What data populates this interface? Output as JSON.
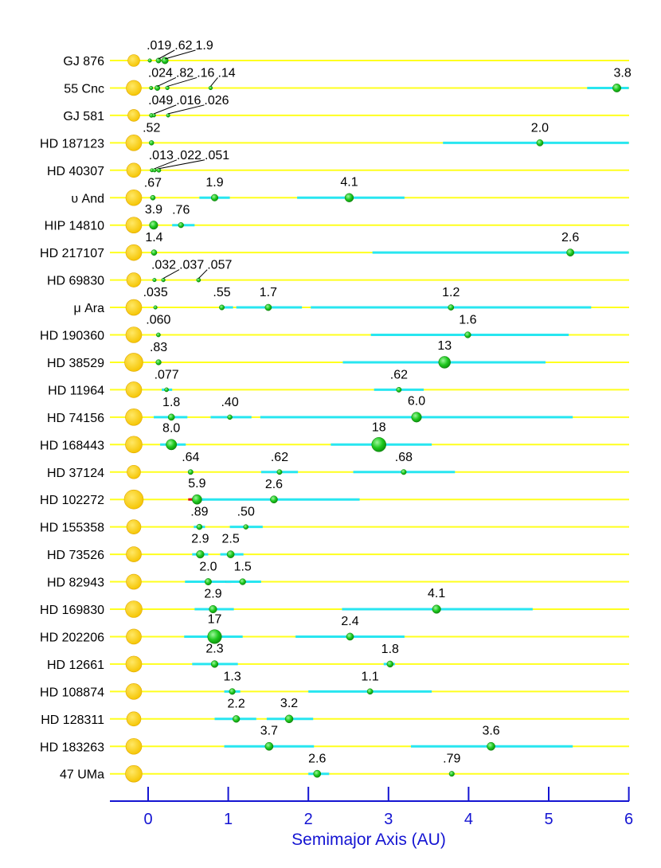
{
  "chart_data": {
    "type": "scatter",
    "xlabel": "Semimajor Axis (AU)",
    "xlim": [
      -0.45,
      6.05
    ],
    "xticks": [
      0,
      1,
      2,
      3,
      4,
      5,
      6
    ],
    "colors": {
      "baseline": "#ffff1e",
      "range": "#28e6f0",
      "periastron_overlap": "#e01010",
      "planet": "#1ec81e",
      "star": "#ffcc00",
      "axis": "#1414d2"
    },
    "systems": [
      {
        "name": "GJ 876",
        "star_size": 0.75,
        "planets": [
          {
            "a": 0.021,
            "mass": ".019",
            "r": 2.3
          },
          {
            "a": 0.13,
            "mass": ".62",
            "r": 3.2
          },
          {
            "a": 0.21,
            "mass": "1.9",
            "r": 4.2
          }
        ]
      },
      {
        "name": "55 Cnc",
        "star_size": 0.95,
        "planets": [
          {
            "a": 0.038,
            "mass": ".024",
            "r": 2.3
          },
          {
            "a": 0.115,
            "mass": ".82",
            "r": 3.3
          },
          {
            "a": 0.24,
            "mass": ".16",
            "r": 2.4
          },
          {
            "a": 0.78,
            "mass": ".14",
            "r": 2.4
          },
          {
            "a": 5.85,
            "mass": "3.8",
            "r": 5.2,
            "range": [
              5.48,
              6.0
            ]
          }
        ]
      },
      {
        "name": "GJ 581",
        "star_size": 0.75,
        "planets": [
          {
            "a": 0.041,
            "mass": ".049",
            "r": 2.6
          },
          {
            "a": 0.073,
            "mass": ".016",
            "r": 2.2
          },
          {
            "a": 0.25,
            "mass": ".026",
            "r": 2.3
          }
        ]
      },
      {
        "name": "HD 187123",
        "star_size": 1.0,
        "planets": [
          {
            "a": 0.042,
            "mass": ".52",
            "r": 3.0
          },
          {
            "a": 4.89,
            "mass": "2.0",
            "r": 4.1,
            "range": [
              3.68,
              6.0
            ]
          }
        ]
      },
      {
        "name": "HD 40307",
        "star_size": 0.9,
        "planets": [
          {
            "a": 0.047,
            "mass": ".013",
            "r": 2.2
          },
          {
            "a": 0.081,
            "mass": ".022",
            "r": 2.3
          },
          {
            "a": 0.134,
            "mass": ".051",
            "r": 2.6
          }
        ]
      },
      {
        "name": "υ And",
        "star_size": 1.0,
        "planets": [
          {
            "a": 0.059,
            "mass": ".67",
            "r": 3.1
          },
          {
            "a": 0.83,
            "mass": "1.9",
            "r": 4.3,
            "range": [
              0.64,
              1.02
            ]
          },
          {
            "a": 2.51,
            "mass": "4.1",
            "r": 5.4,
            "range": [
              1.86,
              3.2
            ]
          }
        ]
      },
      {
        "name": "HIP 14810",
        "star_size": 1.0,
        "planets": [
          {
            "a": 0.069,
            "mass": "3.9",
            "r": 5.3
          },
          {
            "a": 0.41,
            "mass": ".76",
            "r": 3.4,
            "range": [
              0.3,
              0.58
            ]
          }
        ]
      },
      {
        "name": "HD 217107",
        "star_size": 1.0,
        "planets": [
          {
            "a": 0.074,
            "mass": "1.4",
            "r": 3.6
          },
          {
            "a": 5.27,
            "mass": "2.6",
            "r": 4.6,
            "range": [
              2.8,
              6.0
            ]
          }
        ]
      },
      {
        "name": "HD 69830",
        "star_size": 0.9,
        "planets": [
          {
            "a": 0.079,
            "mass": ".032",
            "r": 2.3
          },
          {
            "a": 0.19,
            "mass": ".037",
            "r": 2.4
          },
          {
            "a": 0.63,
            "mass": ".057",
            "r": 2.6
          }
        ]
      },
      {
        "name": "μ Ara",
        "star_size": 1.0,
        "planets": [
          {
            "a": 0.091,
            "mass": ".035",
            "r": 2.3
          },
          {
            "a": 0.92,
            "mass": ".55",
            "r": 3.2,
            "range": [
              0.89,
              1.06
            ]
          },
          {
            "a": 1.5,
            "mass": "1.7",
            "r": 4.1,
            "range": [
              1.1,
              1.92
            ]
          },
          {
            "a": 3.78,
            "mass": "1.2",
            "r": 3.6,
            "range": [
              2.03,
              5.53
            ]
          }
        ]
      },
      {
        "name": "HD 190360",
        "star_size": 1.0,
        "planets": [
          {
            "a": 0.128,
            "mass": ".060",
            "r": 2.6
          },
          {
            "a": 3.99,
            "mass": "1.6",
            "r": 3.9,
            "range": [
              2.78,
              5.25
            ]
          }
        ]
      },
      {
        "name": "HD 38529",
        "star_size": 1.15,
        "planets": [
          {
            "a": 0.13,
            "mass": ".83",
            "r": 3.4
          },
          {
            "a": 3.7,
            "mass": "13",
            "r": 7.5,
            "range": [
              2.43,
              4.96
            ]
          }
        ]
      },
      {
        "name": "HD 11964",
        "star_size": 1.0,
        "planets": [
          {
            "a": 0.23,
            "mass": ".077",
            "r": 2.6,
            "range": [
              0.17,
              0.3
            ]
          },
          {
            "a": 3.13,
            "mass": ".62",
            "r": 3.2,
            "range": [
              2.82,
              3.44
            ]
          }
        ]
      },
      {
        "name": "HD 74156",
        "star_size": 1.05,
        "planets": [
          {
            "a": 0.29,
            "mass": "1.8",
            "r": 4.1,
            "range": [
              0.07,
              0.49
            ]
          },
          {
            "a": 1.02,
            "mass": ".40",
            "r": 3.0,
            "range": [
              0.78,
              1.29
            ]
          },
          {
            "a": 3.35,
            "mass": "6.0",
            "r": 6.3,
            "range": [
              1.4,
              5.3
            ]
          }
        ]
      },
      {
        "name": "HD 168443",
        "star_size": 1.05,
        "planets": [
          {
            "a": 0.29,
            "mass": "8.0",
            "r": 6.7,
            "range": [
              0.15,
              0.47
            ]
          },
          {
            "a": 2.88,
            "mass": "18",
            "r": 9.0,
            "range": [
              2.28,
              3.54
            ]
          }
        ]
      },
      {
        "name": "HD 37124",
        "star_size": 0.85,
        "planets": [
          {
            "a": 0.53,
            "mass": ".64",
            "r": 3.2
          },
          {
            "a": 1.64,
            "mass": ".62",
            "r": 3.2,
            "range": [
              1.41,
              1.87
            ]
          },
          {
            "a": 3.19,
            "mass": ".68",
            "r": 3.3,
            "range": [
              2.56,
              3.83
            ]
          }
        ]
      },
      {
        "name": "HD 102272",
        "star_size": 1.2,
        "planets": [
          {
            "a": 0.61,
            "mass": "5.9",
            "r": 6.1,
            "range": [
              0.52,
              0.7
            ],
            "overlap": [
              0.5,
              0.56
            ]
          },
          {
            "a": 1.57,
            "mass": "2.6",
            "r": 4.6,
            "range": [
              0.68,
              2.64
            ]
          }
        ]
      },
      {
        "name": "HD 155358",
        "star_size": 0.9,
        "planets": [
          {
            "a": 0.64,
            "mass": ".89",
            "r": 3.5,
            "range": [
              0.57,
              0.71
            ]
          },
          {
            "a": 1.22,
            "mass": ".50",
            "r": 3.0,
            "range": [
              1.02,
              1.43
            ]
          }
        ]
      },
      {
        "name": "HD 73526",
        "star_size": 0.95,
        "planets": [
          {
            "a": 0.65,
            "mass": "2.9",
            "r": 4.9,
            "range": [
              0.55,
              0.75
            ]
          },
          {
            "a": 1.03,
            "mass": "2.5",
            "r": 4.6,
            "range": [
              0.9,
              1.19
            ]
          }
        ]
      },
      {
        "name": "HD 82943",
        "star_size": 0.95,
        "planets": [
          {
            "a": 0.75,
            "mass": "2.0",
            "r": 4.2,
            "range": [
              0.46,
              1.04
            ],
            "overlap": [
              0.97,
              1.04
            ]
          },
          {
            "a": 1.18,
            "mass": "1.5",
            "r": 3.9,
            "range": [
              0.97,
              1.41
            ]
          }
        ]
      },
      {
        "name": "HD 169830",
        "star_size": 1.05,
        "planets": [
          {
            "a": 0.81,
            "mass": "2.9",
            "r": 4.8,
            "range": [
              0.58,
              1.07
            ]
          },
          {
            "a": 3.6,
            "mass": "4.1",
            "r": 5.3,
            "range": [
              2.42,
              4.8
            ]
          }
        ]
      },
      {
        "name": "HD 202206",
        "star_size": 0.95,
        "planets": [
          {
            "a": 0.83,
            "mass": "17",
            "r": 8.8,
            "range": [
              0.45,
              1.18
            ]
          },
          {
            "a": 2.52,
            "mass": "2.4",
            "r": 4.6,
            "range": [
              1.84,
              3.2
            ]
          }
        ]
      },
      {
        "name": "HD 12661",
        "star_size": 1.0,
        "planets": [
          {
            "a": 0.83,
            "mass": "2.3",
            "r": 4.4,
            "range": [
              0.55,
              1.12
            ]
          },
          {
            "a": 3.02,
            "mass": "1.8",
            "r": 4.0,
            "range": [
              2.94,
              3.08
            ]
          }
        ]
      },
      {
        "name": "HD 108874",
        "star_size": 1.0,
        "planets": [
          {
            "a": 1.05,
            "mass": "1.3",
            "r": 3.8,
            "range": [
              0.95,
              1.15
            ]
          },
          {
            "a": 2.77,
            "mass": "1.1",
            "r": 3.6,
            "range": [
              2.0,
              3.54
            ]
          }
        ]
      },
      {
        "name": "HD 128311",
        "star_size": 0.9,
        "planets": [
          {
            "a": 1.1,
            "mass": "2.2",
            "r": 4.4,
            "range": [
              0.83,
              1.35
            ]
          },
          {
            "a": 1.76,
            "mass": "3.2",
            "r": 5.0,
            "range": [
              1.48,
              2.06
            ]
          }
        ]
      },
      {
        "name": "HD 183263",
        "star_size": 1.0,
        "planets": [
          {
            "a": 1.51,
            "mass": "3.7",
            "r": 5.1,
            "range": [
              0.95,
              2.07
            ]
          },
          {
            "a": 4.28,
            "mass": "3.6",
            "r": 5.1,
            "range": [
              3.28,
              5.3
            ]
          }
        ]
      },
      {
        "name": "47 UMa",
        "star_size": 1.05,
        "planets": [
          {
            "a": 2.11,
            "mass": "2.6",
            "r": 4.6,
            "range": [
              2.0,
              2.26
            ]
          },
          {
            "a": 3.79,
            "mass": ".79",
            "r": 3.3
          }
        ]
      }
    ]
  }
}
